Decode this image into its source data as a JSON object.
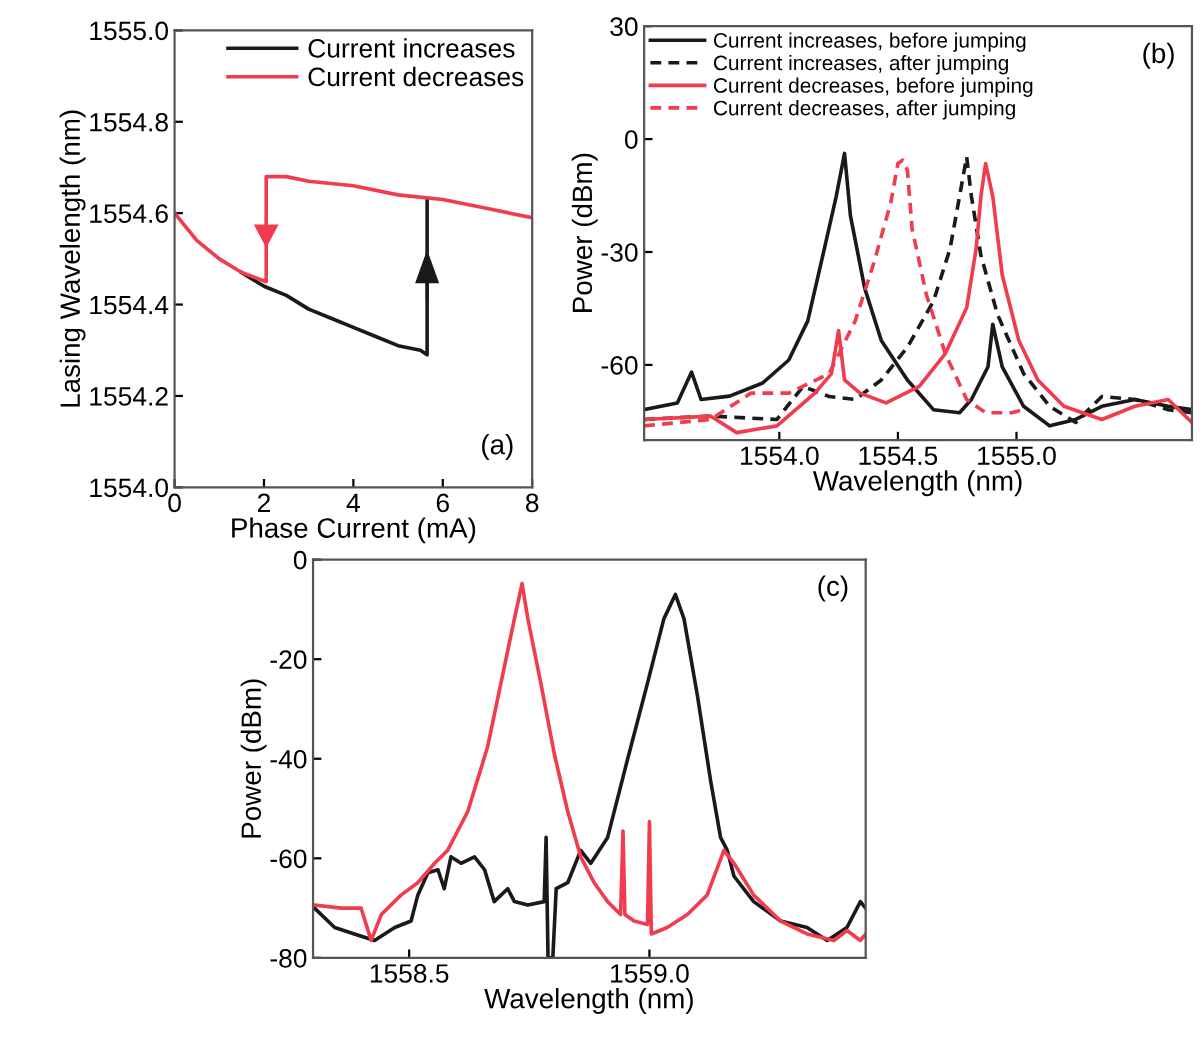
{
  "chart_data": [
    {
      "type": "line",
      "xlabel": "Phase Current (mA)",
      "ylabel": "Lasing Wavelength (nm)",
      "annotations": [
        "(a)"
      ],
      "legend": "top right",
      "grid": false,
      "xlim": [
        0,
        8
      ],
      "xticks": [
        0,
        2,
        4,
        6,
        8
      ],
      "ylim": [
        1554.0,
        1555.0
      ],
      "yticks": [
        {
          "value": 1554.0,
          "label": "1554.0"
        },
        {
          "value": 1554.2,
          "label": "1554.2"
        },
        {
          "value": 1554.4,
          "label": "1554.4"
        },
        {
          "value": 1554.6,
          "label": "1554.6"
        },
        {
          "value": 1554.8,
          "label": "1554.8"
        },
        {
          "value": 1555.0,
          "label": "1555.0"
        }
      ],
      "series": [
        {
          "name": "Current increases",
          "color": "#1a1a1a",
          "line_style": "solid",
          "x": [
            1.5,
            2,
            2.5,
            3,
            3.5,
            4,
            4.5,
            5,
            5.5,
            5.65,
            5.65
          ],
          "values": [
            1554.47,
            1554.44,
            1554.42,
            1554.39,
            1554.37,
            1554.35,
            1554.33,
            1554.31,
            1554.3,
            1554.29,
            1554.63
          ]
        },
        {
          "name": "Current decreases",
          "color": "#f03c4c",
          "line_style": "solid",
          "x": [
            8,
            7,
            6,
            5,
            4,
            3,
            2.5,
            2.05,
            2.05,
            1.5,
            1,
            0.5,
            0
          ],
          "values": [
            1554.59,
            1554.61,
            1554.63,
            1554.64,
            1554.66,
            1554.67,
            1554.68,
            1554.68,
            1554.45,
            1554.47,
            1554.5,
            1554.54,
            1554.6
          ]
        }
      ]
    },
    {
      "type": "line",
      "xlabel": "Wavelength (nm)",
      "ylabel": "Power (dBm)",
      "annotations": [
        "(b)"
      ],
      "legend": "top left",
      "grid": false,
      "xlim": [
        1553.43,
        1555.74
      ],
      "xticks": [
        {
          "value": 1554.0,
          "label": "1554.0"
        },
        {
          "value": 1554.5,
          "label": "1554.5"
        },
        {
          "value": 1555.0,
          "label": "1555.0"
        }
      ],
      "ylim": [
        -80,
        30
      ],
      "yticks": [
        -60,
        -30,
        0,
        30
      ],
      "series": [
        {
          "name": "Current increases, before jumping",
          "color": "#1a1a1a",
          "line_style": "solid",
          "x": [
            1553.43,
            1553.57,
            1553.63,
            1553.67,
            1553.79,
            1553.93,
            1554.04,
            1554.12,
            1554.19,
            1554.24,
            1554.275,
            1554.3,
            1554.36,
            1554.43,
            1554.54,
            1554.65,
            1554.76,
            1554.81,
            1554.88,
            1554.9,
            1554.94,
            1555.03,
            1555.14,
            1555.25,
            1555.36,
            1555.5,
            1555.64,
            1555.74
          ],
          "values": [
            -71.9,
            -70.1,
            -61.9,
            -69.2,
            -68.3,
            -64.8,
            -58.7,
            -48.3,
            -29.1,
            -15.2,
            -3.8,
            -20.4,
            -39.6,
            -53.5,
            -64.0,
            -71.9,
            -72.7,
            -69.2,
            -60.5,
            -49.2,
            -60.5,
            -71.0,
            -76.2,
            -74.5,
            -71.0,
            -69.2,
            -71.0,
            -71.9
          ]
        },
        {
          "name": "Current increases, after jumping",
          "color": "#1a1a1a",
          "line_style": "dashed",
          "x": [
            1553.43,
            1553.71,
            1553.99,
            1554.1,
            1554.21,
            1554.32,
            1554.43,
            1554.54,
            1554.65,
            1554.72,
            1554.76,
            1554.79,
            1554.81,
            1554.85,
            1554.92,
            1555.03,
            1555.14,
            1555.25,
            1555.36,
            1555.5,
            1555.64,
            1555.74
          ],
          "values": [
            -74.5,
            -73.6,
            -74.5,
            -65.7,
            -68.4,
            -69.2,
            -64.0,
            -55.3,
            -43.1,
            -29.1,
            -15.2,
            -4.7,
            -15.2,
            -30.9,
            -46.6,
            -62.3,
            -71.0,
            -75.3,
            -68.4,
            -69.2,
            -71.9,
            -72.7
          ]
        },
        {
          "name": "Current decreases, before jumping",
          "color": "#f03c4c",
          "line_style": "solid",
          "x": [
            1553.43,
            1553.71,
            1553.82,
            1553.99,
            1554.15,
            1554.22,
            1554.25,
            1554.275,
            1554.34,
            1554.45,
            1554.59,
            1554.7,
            1554.79,
            1554.83,
            1554.85,
            1554.87,
            1554.9,
            1554.94,
            1555.01,
            1555.09,
            1555.2,
            1555.36,
            1555.5,
            1555.64,
            1555.74
          ],
          "values": [
            -74.5,
            -73.6,
            -78.0,
            -76.2,
            -67.5,
            -62.3,
            -50.9,
            -64.0,
            -67.5,
            -70.1,
            -65.7,
            -57.0,
            -44.8,
            -29.1,
            -15.2,
            -6.5,
            -15.2,
            -36.1,
            -53.5,
            -64.0,
            -71.0,
            -74.5,
            -71.0,
            -69.2,
            -75.3
          ]
        },
        {
          "name": "Current decreases, after jumping",
          "color": "#f03c4c",
          "line_style": "dashed",
          "x": [
            1553.43,
            1553.71,
            1553.88,
            1554.04,
            1554.21,
            1554.32,
            1554.4,
            1554.47,
            1554.5,
            1554.52,
            1554.54,
            1554.56,
            1554.62,
            1554.7,
            1554.79,
            1554.87,
            1554.98,
            1555.03
          ],
          "values": [
            -76.2,
            -74.5,
            -67.5,
            -67.5,
            -62.3,
            -48.3,
            -32.6,
            -16.9,
            -6.5,
            -5.6,
            -8.2,
            -23.9,
            -41.3,
            -57.0,
            -69.2,
            -72.7,
            -72.7,
            -71.9
          ]
        }
      ]
    },
    {
      "type": "line",
      "xlabel": "Wavelength (nm)",
      "ylabel": "Power (dBm)",
      "annotations": [
        "(c)"
      ],
      "grid": false,
      "xlim": [
        1558.3,
        1559.45
      ],
      "xticks": [
        {
          "value": 1558.5,
          "label": "1558.5"
        },
        {
          "value": 1559.0,
          "label": "1559.0"
        }
      ],
      "ylim": [
        -80,
        0
      ],
      "yticks": [
        -80,
        -60,
        -40,
        -20,
        0
      ],
      "series": [
        {
          "color": "#1a1a1a",
          "line_style": "solid",
          "x": [
            1558.303,
            1558.345,
            1558.386,
            1558.428,
            1558.47,
            1558.504,
            1558.518,
            1558.539,
            1558.56,
            1558.573,
            1558.587,
            1558.608,
            1558.636,
            1558.657,
            1558.677,
            1558.705,
            1558.719,
            1558.747,
            1558.781,
            1558.785,
            1558.789,
            1558.799,
            1558.806,
            1558.83,
            1558.857,
            1558.878,
            1558.913,
            1558.954,
            1558.996,
            1559.03,
            1559.054,
            1559.072,
            1559.1,
            1559.127,
            1559.148,
            1559.162,
            1559.176,
            1559.217,
            1559.273,
            1559.328,
            1559.37,
            1559.411,
            1559.439,
            1559.45
          ],
          "values": [
            -70.0,
            -73.9,
            -75.2,
            -76.5,
            -73.9,
            -72.6,
            -67.4,
            -62.9,
            -62.3,
            -66.1,
            -59.7,
            -61.0,
            -59.7,
            -62.3,
            -68.7,
            -66.1,
            -68.7,
            -69.4,
            -68.7,
            -55.8,
            -80.0,
            -80.0,
            -66.1,
            -64.9,
            -58.4,
            -61.0,
            -55.8,
            -40.3,
            -24.8,
            -11.9,
            -7.0,
            -11.9,
            -27.4,
            -44.2,
            -55.8,
            -58.4,
            -63.6,
            -68.7,
            -72.6,
            -73.9,
            -76.5,
            -73.9,
            -68.7,
            -70.0
          ]
        },
        {
          "color": "#f03c4c",
          "line_style": "solid",
          "x": [
            1558.303,
            1558.359,
            1558.4,
            1558.421,
            1558.442,
            1558.483,
            1558.518,
            1558.553,
            1558.58,
            1558.622,
            1558.663,
            1558.691,
            1558.719,
            1558.735,
            1558.747,
            1558.774,
            1558.802,
            1558.83,
            1558.857,
            1558.885,
            1558.913,
            1558.94,
            1558.945,
            1558.949,
            1558.968,
            1558.996,
            1559.0,
            1559.004,
            1559.037,
            1559.079,
            1559.12,
            1559.155,
            1559.176,
            1559.217,
            1559.273,
            1559.328,
            1559.384,
            1559.411,
            1559.439,
            1559.45
          ],
          "values": [
            -69.4,
            -70.0,
            -70.0,
            -76.5,
            -71.3,
            -67.4,
            -64.9,
            -61.0,
            -58.4,
            -50.6,
            -37.7,
            -24.8,
            -11.9,
            -4.8,
            -11.9,
            -24.8,
            -39.0,
            -50.6,
            -59.7,
            -64.9,
            -68.7,
            -71.3,
            -54.5,
            -71.3,
            -72.6,
            -73.3,
            -52.6,
            -75.2,
            -73.9,
            -71.3,
            -67.4,
            -58.4,
            -61.0,
            -67.4,
            -72.6,
            -75.2,
            -76.5,
            -74.5,
            -76.5,
            -75.2
          ]
        }
      ]
    }
  ]
}
